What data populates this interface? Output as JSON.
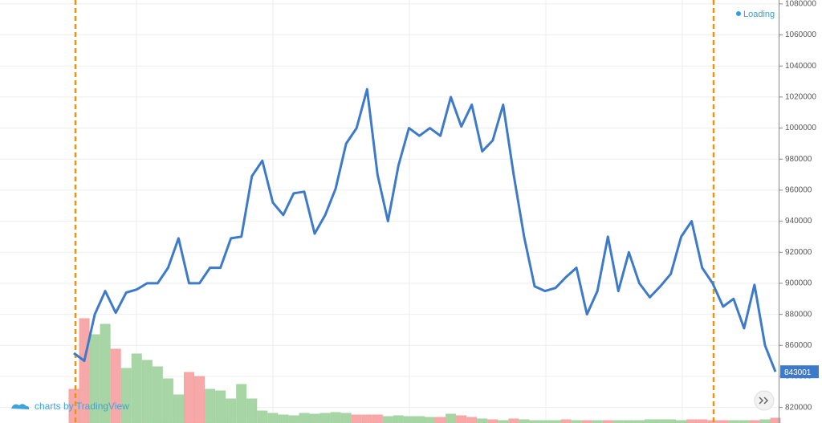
{
  "chart_data": {
    "type": "line",
    "status": "Loading",
    "watermark": "charts by TradingView",
    "ylim": [
      810000,
      1082500
    ],
    "yticks": [
      820000,
      840000,
      860000,
      880000,
      900000,
      920000,
      940000,
      960000,
      980000,
      1000000,
      1020000,
      1040000,
      1060000,
      1080000
    ],
    "grid": true,
    "series": [
      {
        "color": "#3d7ac9",
        "values": [
          855000,
          850000,
          880000,
          895000,
          881000,
          894000,
          896000,
          900000,
          900000,
          910000,
          929000,
          900000,
          900000,
          910000,
          910000,
          929000,
          930000,
          969000,
          979000,
          952000,
          944000,
          958000,
          959000,
          932000,
          944000,
          961000,
          990000,
          1000000,
          1025000,
          970000,
          940000,
          976000,
          1000000,
          995000,
          1000000,
          995000,
          1020000,
          1001000,
          1015000,
          985000,
          992000,
          1015000,
          970000,
          930000,
          898000,
          895000,
          897000,
          904000,
          910000,
          880000,
          895000,
          930000,
          895000,
          920000,
          900000,
          891000,
          898000,
          906000,
          930000,
          940000,
          910000,
          900000,
          885000,
          890000,
          871000,
          899000,
          860000,
          843001
        ]
      }
    ],
    "volume": {
      "values": [
        42,
        130,
        110,
        123,
        92,
        68,
        86,
        78,
        70,
        55,
        35,
        63,
        58,
        42,
        40,
        30,
        48,
        30,
        15,
        12,
        10,
        9,
        12,
        11,
        12,
        13,
        12,
        10,
        10,
        10,
        8,
        9,
        8,
        8,
        7,
        7,
        11,
        9,
        7,
        5,
        4,
        3,
        5,
        4,
        3,
        3,
        3,
        4,
        3,
        3,
        3,
        3,
        3,
        3,
        3,
        4,
        4,
        4,
        3,
        4,
        4,
        3,
        3,
        3,
        3,
        3,
        4,
        6
      ],
      "colors": [
        "#f7a3a3",
        "#f7a3a3",
        "#a3d3a0",
        "#a3d3a0",
        "#f7a3a3",
        "#a3d3a0",
        "#a3d3a0",
        "#a3d3a0",
        "#a3d3a0",
        "#a3d3a0",
        "#a3d3a0",
        "#f7a3a3",
        "#f7a3a3",
        "#a3d3a0",
        "#a3d3a0",
        "#a3d3a0",
        "#a3d3a0",
        "#a3d3a0",
        "#a3d3a0",
        "#a3d3a0",
        "#a3d3a0",
        "#a3d3a0",
        "#a3d3a0",
        "#a3d3a0",
        "#a3d3a0",
        "#a3d3a0",
        "#a3d3a0",
        "#f7a3a3",
        "#f7a3a3",
        "#f7a3a3",
        "#a3d3a0",
        "#a3d3a0",
        "#a3d3a0",
        "#a3d3a0",
        "#a3d3a0",
        "#f7a3a3",
        "#a3d3a0",
        "#f7a3a3",
        "#f7a3a3",
        "#a3d3a0",
        "#f7a3a3",
        "#a3d3a0",
        "#f7a3a3",
        "#a3d3a0",
        "#a3d3a0",
        "#a3d3a0",
        "#a3d3a0",
        "#f7a3a3",
        "#a3d3a0",
        "#f7a3a3",
        "#a3d3a0",
        "#f7a3a3",
        "#a3d3a0",
        "#a3d3a0",
        "#a3d3a0",
        "#a3d3a0",
        "#a3d3a0",
        "#a3d3a0",
        "#a3d3a0",
        "#f7a3a3",
        "#f7a3a3",
        "#f7a3a3",
        "#f7a3a3",
        "#a3d3a0",
        "#a3d3a0",
        "#f7a3a3",
        "#a3d3a0",
        "#f7a3a3"
      ]
    }
  }
}
